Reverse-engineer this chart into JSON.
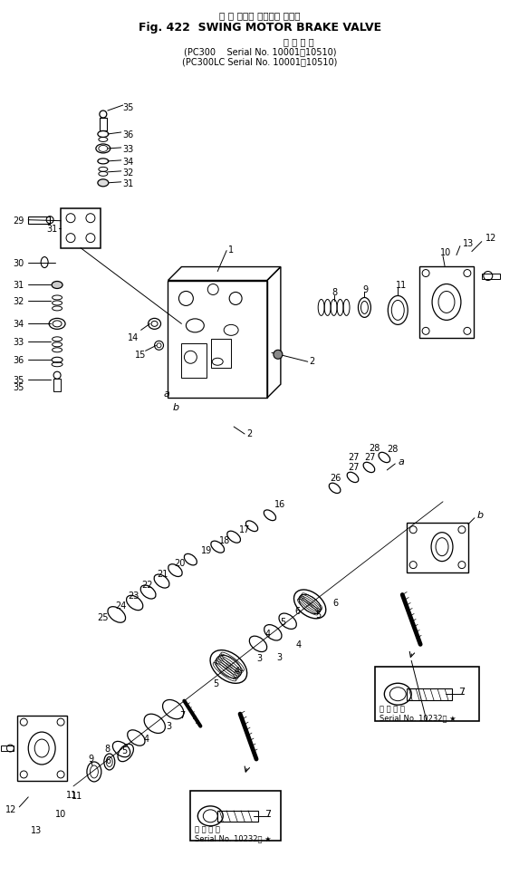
{
  "title_jp": "旋 回 モータ ブレーキ バルブ",
  "title_en": "Fig. 422  SWING MOTOR BRAKE VALVE",
  "subtitle_label": "適 用 号 機",
  "subtitle2": "(PC300    Serial No. 10001～10510)",
  "subtitle3": "(PC300LC Serial No. 10001～10510)",
  "inset_label": "適 用 号 機",
  "inset_serial": "Serial No. 10232～ ★",
  "bg_color": "#ffffff",
  "fg_color": "#000000",
  "fig_width": 5.73,
  "fig_height": 9.78,
  "dpi": 100
}
